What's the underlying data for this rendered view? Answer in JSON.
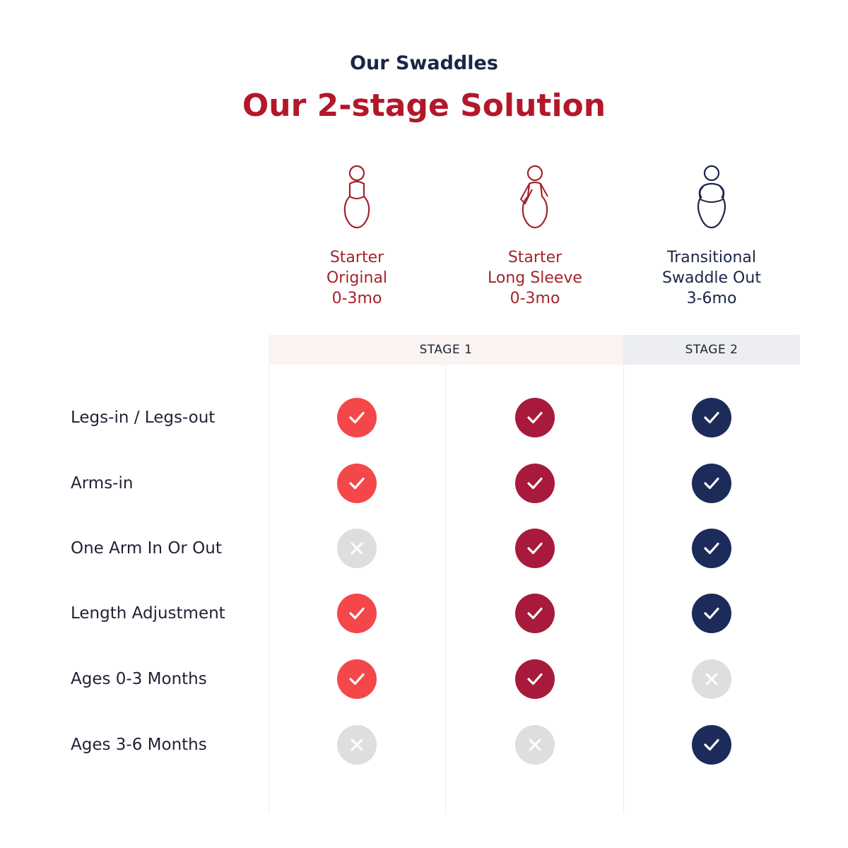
{
  "header": {
    "eyebrow": "Our Swaddles",
    "title": "Our 2-stage Solution"
  },
  "products": [
    {
      "line1": "Starter",
      "line2": "Original",
      "age": "0-3mo",
      "color": "#a3232d",
      "icon": "swaddle-arms-in-icon"
    },
    {
      "line1": "Starter",
      "line2": "Long Sleeve",
      "age": "0-3mo",
      "color": "#a3232d",
      "icon": "swaddle-long-sleeve-icon"
    },
    {
      "line1": "Transitional",
      "line2": "Swaddle Out",
      "age": "3-6mo",
      "color": "#1c2547",
      "icon": "swaddle-arms-out-icon"
    }
  ],
  "stages": [
    {
      "label": "STAGE 1",
      "background": "#fbf3f2"
    },
    {
      "label": "STAGE 2",
      "background": "#eceef1"
    }
  ],
  "colors": {
    "starter_original": "#f4474a",
    "starter_long_sleeve": "#a81a3b",
    "transitional": "#1d2b5a",
    "unavailable": "#dedede"
  },
  "features": [
    {
      "label": "Legs-in / Legs-out",
      "values": [
        true,
        true,
        true
      ]
    },
    {
      "label": "Arms-in",
      "values": [
        true,
        true,
        true
      ]
    },
    {
      "label": "One Arm In Or Out",
      "values": [
        false,
        true,
        true
      ]
    },
    {
      "label": "Length Adjustment",
      "values": [
        true,
        true,
        true
      ]
    },
    {
      "label": "Ages 0-3 Months",
      "values": [
        true,
        true,
        false
      ]
    },
    {
      "label": "Ages 3-6 Months",
      "values": [
        false,
        false,
        true
      ]
    }
  ]
}
